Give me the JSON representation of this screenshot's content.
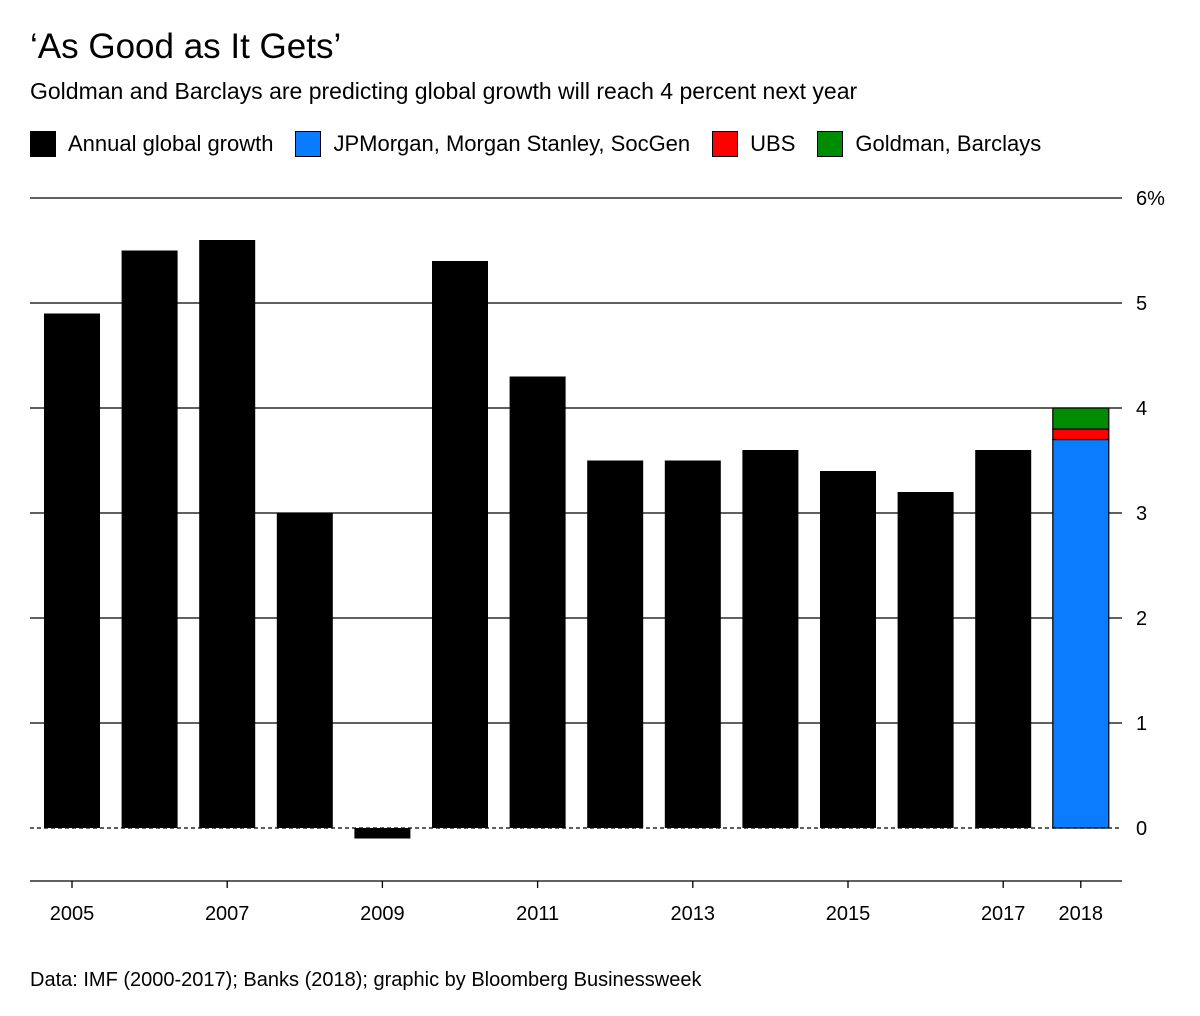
{
  "title": "‘As Good as It Gets’",
  "subtitle": "Goldman and Barclays are predicting global growth will reach 4 percent next year",
  "source": "Data: IMF (2000-2017); Banks (2018); graphic by Bloomberg Businessweek",
  "legend": [
    {
      "label": "Annual global growth",
      "color": "#000000"
    },
    {
      "label": "JPMorgan, Morgan Stanley, SocGen",
      "color": "#0a7cff"
    },
    {
      "label": "UBS",
      "color": "#ff0000"
    },
    {
      "label": "Goldman, Barclays",
      "color": "#008c00"
    }
  ],
  "chart_data": {
    "type": "bar",
    "categories": [
      "2005",
      "2006",
      "2007",
      "2008",
      "2009",
      "2010",
      "2011",
      "2012",
      "2013",
      "2014",
      "2015",
      "2016",
      "2017",
      "2018"
    ],
    "x_tick_labels": [
      "2005",
      "",
      "2007",
      "",
      "2009",
      "",
      "2011",
      "",
      "2013",
      "",
      "2015",
      "",
      "2017",
      "2018"
    ],
    "series": [
      {
        "name": "Annual global growth",
        "color": "#000000",
        "values": [
          4.9,
          5.5,
          5.6,
          3.0,
          -0.1,
          5.4,
          4.3,
          3.5,
          3.5,
          3.6,
          3.4,
          3.2,
          3.6,
          null
        ]
      }
    ],
    "stacked_forecast": {
      "category": "2018",
      "segments": [
        {
          "name": "JPMorgan, Morgan Stanley, SocGen",
          "from": 0,
          "to": 3.7,
          "color": "#0a7cff"
        },
        {
          "name": "UBS",
          "from": 3.7,
          "to": 3.8,
          "color": "#ff0000"
        },
        {
          "name": "Goldman, Barclays",
          "from": 3.8,
          "to": 4.0,
          "color": "#008c00"
        }
      ]
    },
    "y_ticks": [
      {
        "value": 0,
        "label": "0"
      },
      {
        "value": 1,
        "label": "1"
      },
      {
        "value": 2,
        "label": "2"
      },
      {
        "value": 3,
        "label": "3"
      },
      {
        "value": 4,
        "label": "4"
      },
      {
        "value": 5,
        "label": "5"
      },
      {
        "value": 6,
        "label": "6%"
      }
    ],
    "ylim": [
      -0.5,
      6
    ],
    "y_axis_side": "right",
    "grid": true,
    "zero_line": "dashed",
    "legend_position": "top"
  }
}
